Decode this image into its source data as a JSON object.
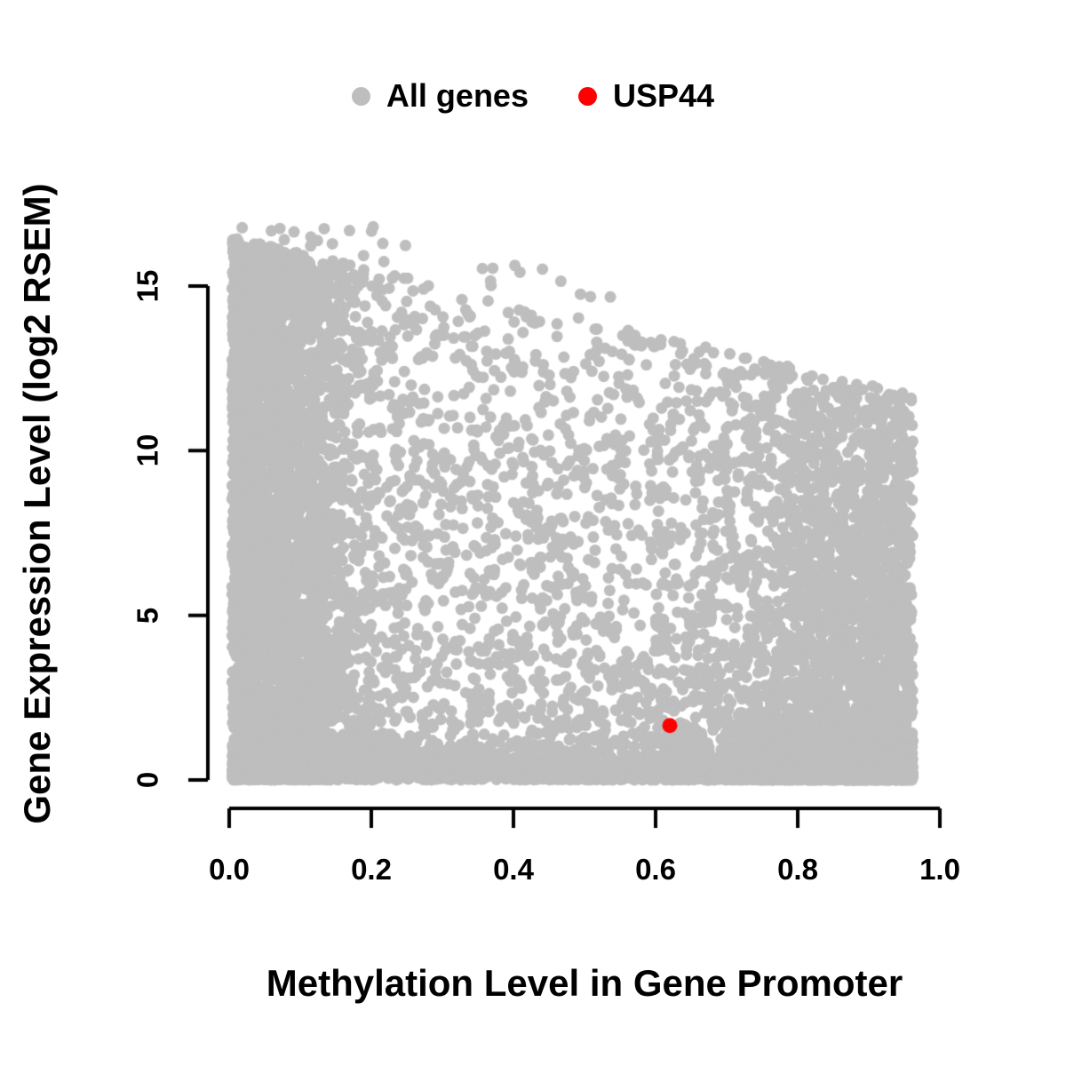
{
  "legend": {
    "items": [
      {
        "label": "All genes",
        "color": "#bebebe"
      },
      {
        "label": "USP44",
        "color": "#ff0000"
      }
    ]
  },
  "chart_data": {
    "type": "scatter",
    "title": "",
    "xlabel": "Methylation Level in Gene Promoter",
    "ylabel": "Gene Expression Level (log2 RSEM)",
    "xlim": [
      0,
      1.0
    ],
    "ylim": [
      0,
      17
    ],
    "grid": false,
    "legend_position": "top-center",
    "x_ticks": [
      "0.0",
      "0.2",
      "0.4",
      "0.6",
      "0.8",
      "1.0"
    ],
    "x_tick_values": [
      0,
      0.2,
      0.4,
      0.6,
      0.8,
      1.0
    ],
    "y_ticks": [
      "0",
      "5",
      "10",
      "15"
    ],
    "y_tick_values": [
      0,
      5,
      10,
      15
    ],
    "axis_color": "#000000",
    "series": [
      {
        "name": "All genes",
        "color": "#bebebe",
        "kind": "dense-cloud",
        "description": "Dense cloud of thousands of genes; methylation spans 0.0-0.96, expression 0-16.8 log2 RSEM; maximum expression declines roughly linearly from ~16.5 at methylation 0 to ~12 at methylation 0.95; very high point density at low methylation (<0.15), along the zero-expression baseline across all methylation levels, and a secondary accumulation near methylation 0.9-0.96.",
        "generator": {
          "seed": 911,
          "n": 12500,
          "x_min": 0.004,
          "x_max": 0.962,
          "left_frac": 0.4,
          "left_sigma": 0.085,
          "mid_frac": 0.33,
          "mid_power": 0.85,
          "right_sigma": 0.13,
          "envelope_intercept": 16.5,
          "envelope_slope": -5.0,
          "bottom_band_frac": 0.28,
          "bottom_sigma": 0.55,
          "y_power_base": 0.9,
          "y_power_slope": 1.5,
          "outliers": 28,
          "point_radius": 6.5
        }
      },
      {
        "name": "USP44",
        "color": "#ff0000",
        "kind": "points",
        "points": [
          [
            0.62,
            1.65
          ]
        ],
        "point_radius": 8.5
      }
    ]
  }
}
